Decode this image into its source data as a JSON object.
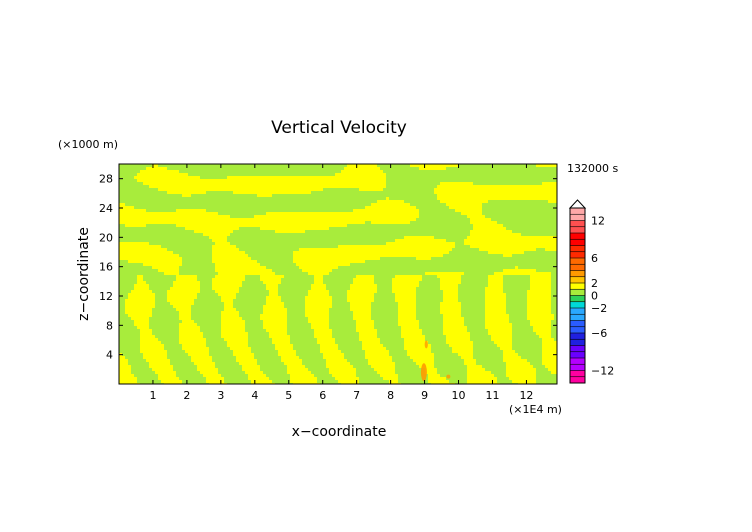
{
  "chart_data": {
    "type": "heatmap",
    "title": "Vertical Velocity",
    "xlabel": "x−coordinate",
    "ylabel": "z−coordinate",
    "x_unit_label": "(×1E4 m)",
    "y_unit_label": "(×1000 m)",
    "time_label": "132000 s",
    "xlim": [
      0,
      12.9
    ],
    "ylim": [
      0,
      30
    ],
    "x_ticks": [
      1,
      2,
      3,
      4,
      5,
      6,
      7,
      8,
      9,
      10,
      11,
      12
    ],
    "y_ticks": [
      4,
      8,
      12,
      16,
      20,
      24,
      28
    ],
    "colorbar": {
      "range": [
        -14,
        14
      ],
      "step": 1,
      "tick_values": [
        12,
        6,
        2,
        0,
        -2,
        -6,
        -12
      ],
      "tick_labels": [
        "12",
        "6",
        "2",
        "0",
        "−2",
        "−6",
        "−12"
      ],
      "levels": [
        {
          "from": -14,
          "to": -12,
          "color": "#ff00a0"
        },
        {
          "from": -12,
          "to": -10,
          "color": "#b400ff"
        },
        {
          "from": -10,
          "to": -8,
          "color": "#6a00ff"
        },
        {
          "from": -8,
          "to": -6,
          "color": "#2020e0"
        },
        {
          "from": -6,
          "to": -4,
          "color": "#2a5cff"
        },
        {
          "from": -4,
          "to": -2,
          "color": "#2aa8ff"
        },
        {
          "from": -2,
          "to": -1,
          "color": "#00d8d8"
        },
        {
          "from": -1,
          "to": 0,
          "color": "#2ed15a"
        },
        {
          "from": 0,
          "to": 1,
          "color": "#a8ec3c"
        },
        {
          "from": 1,
          "to": 2,
          "color": "#ffff00"
        },
        {
          "from": 2,
          "to": 3,
          "color": "#ffc400"
        },
        {
          "from": 3,
          "to": 4,
          "color": "#ff9a00"
        },
        {
          "from": 4,
          "to": 6,
          "color": "#ff6a00"
        },
        {
          "from": 6,
          "to": 8,
          "color": "#ff2a00"
        },
        {
          "from": 8,
          "to": 10,
          "color": "#ff0000"
        },
        {
          "from": 10,
          "to": 12,
          "color": "#ff5050"
        },
        {
          "from": 12,
          "to": 14,
          "color": "#ffa8a8"
        }
      ]
    },
    "field_colors": {
      "near_zero": "#a8ec3c",
      "weak_positive": "#ffff00",
      "strong_positive": "#ff9a00"
    }
  }
}
